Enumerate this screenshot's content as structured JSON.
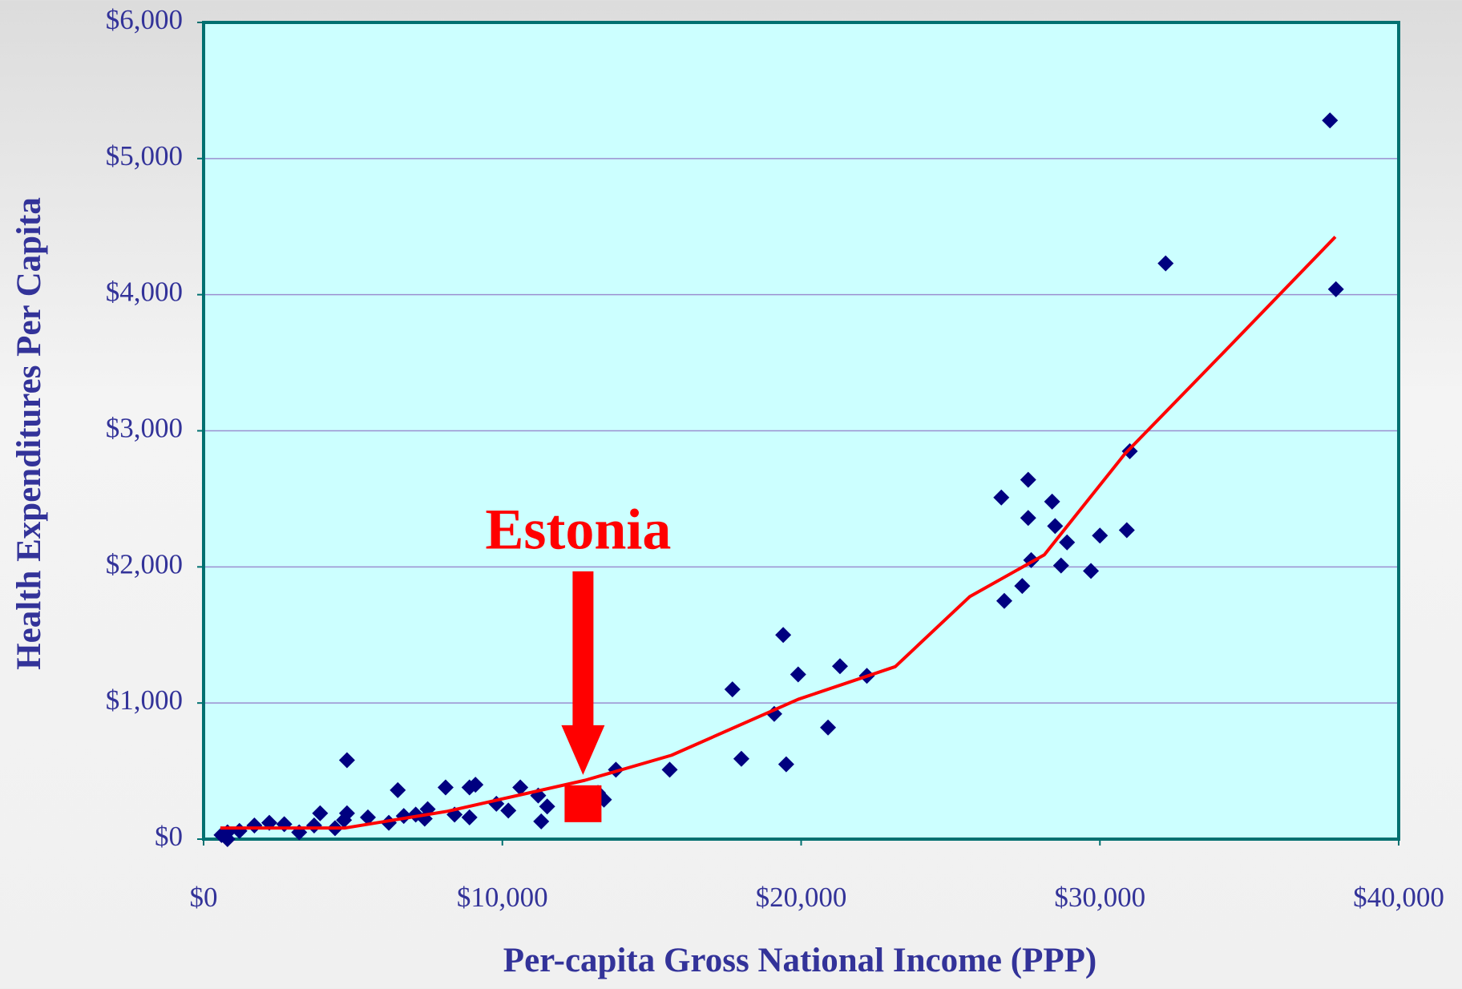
{
  "chart_data": {
    "type": "scatter",
    "xlabel": "Per-capita Gross National Income (PPP)",
    "ylabel": "Health Expenditures Per Capita",
    "color": "#000080",
    "x": [
      37700,
      37900,
      32200,
      31000,
      30900,
      30000,
      29700,
      28900,
      28700,
      28500,
      28400,
      27600,
      27600,
      27700,
      27400,
      26700,
      26800,
      22200,
      21300,
      20900,
      19900,
      19400,
      19100,
      19500,
      17700,
      18000,
      15600,
      13800,
      13400,
      13200,
      13000,
      11500,
      11300,
      11200,
      10600,
      10200,
      9800,
      9100,
      8900,
      8900,
      8400,
      8100,
      7500,
      7400,
      7100,
      6500,
      6700,
      6200,
      5500,
      4800,
      4800,
      4700,
      4400,
      3900,
      3700,
      3200,
      2700,
      2200,
      1700,
      1200,
      800,
      600,
      800
    ],
    "values": [
      5280,
      4040,
      4230,
      2850,
      2270,
      2230,
      1970,
      2180,
      2010,
      2300,
      2480,
      2640,
      2360,
      2050,
      1860,
      2510,
      1750,
      1200,
      1270,
      820,
      1210,
      1500,
      920,
      550,
      1100,
      590,
      510,
      510,
      290,
      340,
      250,
      240,
      130,
      320,
      380,
      210,
      260,
      400,
      380,
      160,
      180,
      380,
      220,
      150,
      180,
      360,
      170,
      120,
      160,
      580,
      190,
      140,
      80,
      190,
      100,
      50,
      110,
      120,
      100,
      60,
      50,
      30,
      0
    ],
    "trendline": {
      "color": "#ff0000",
      "x": [
        560,
        2560,
        4740,
        8170,
        12760,
        15660,
        19900,
        23150,
        25640,
        28140,
        30830,
        34380,
        37880
      ],
      "y": [
        82,
        82,
        82,
        205,
        432,
        616,
        1027,
        1267,
        1781,
        2089,
        2829,
        3630,
        4425
      ]
    },
    "highlight": {
      "label": "Estonia",
      "x": 12700,
      "y": 260,
      "color": "#ff0000"
    },
    "xlim": [
      0,
      40000
    ],
    "ylim": [
      0,
      6000
    ],
    "xticks": [
      {
        "value": 0,
        "label": "$0"
      },
      {
        "value": 10000,
        "label": "$10,000"
      },
      {
        "value": 20000,
        "label": "$20,000"
      },
      {
        "value": 30000,
        "label": "$30,000"
      },
      {
        "value": 40000,
        "label": "$40,000"
      }
    ],
    "yticks": [
      {
        "value": 0,
        "label": "$0"
      },
      {
        "value": 1000,
        "label": "$1,000"
      },
      {
        "value": 2000,
        "label": "$2,000"
      },
      {
        "value": 3000,
        "label": "$3,000"
      },
      {
        "value": 4000,
        "label": "$4,000"
      },
      {
        "value": 5000,
        "label": "$5,000"
      },
      {
        "value": 6000,
        "label": "$6,000"
      }
    ],
    "grid": true
  }
}
